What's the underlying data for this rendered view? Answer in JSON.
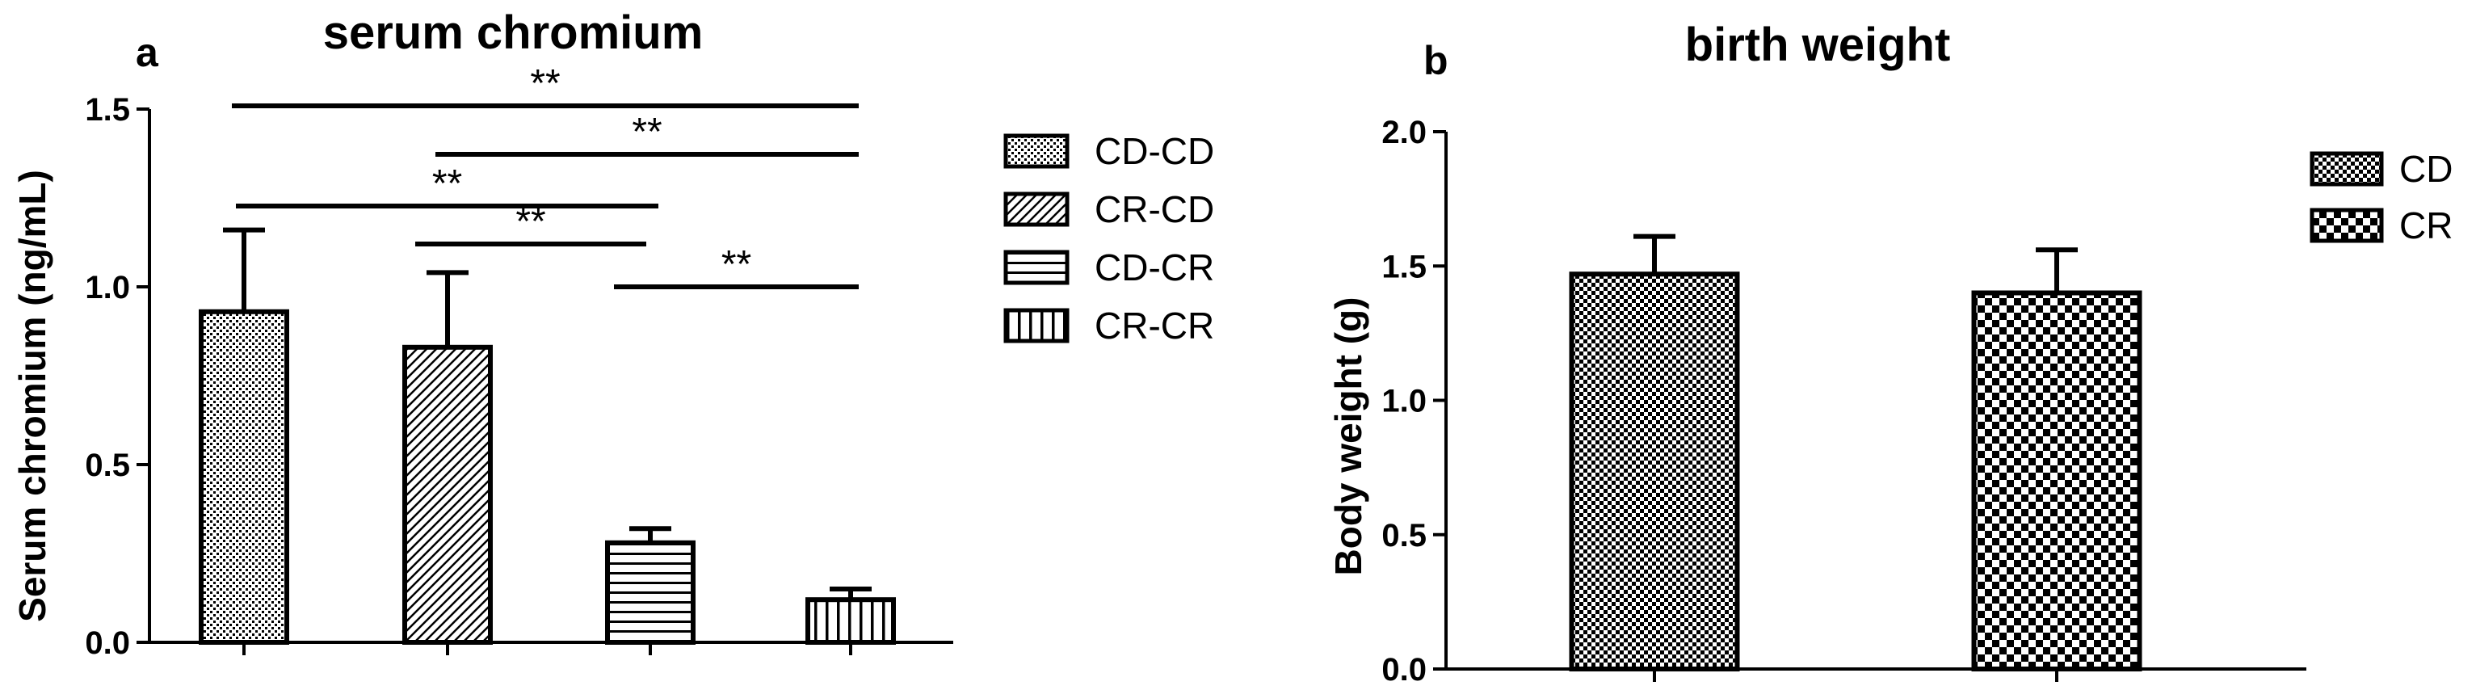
{
  "chart_data": [
    {
      "type": "bar",
      "panel_label": "a",
      "title": "serum chromium",
      "ylabel": "Serum chromium (ng/mL)",
      "xlabel": "",
      "ylim": [
        0,
        1.5
      ],
      "yticks": [
        "0.0",
        "0.5",
        "1.0",
        "1.5"
      ],
      "categories": [
        "CD-CD",
        "CR-CD",
        "CD-CR",
        "CR-CR"
      ],
      "values": [
        0.93,
        0.83,
        0.28,
        0.12
      ],
      "error": [
        0.23,
        0.21,
        0.04,
        0.03
      ],
      "fills": [
        "dots",
        "diagonal",
        "horizontal",
        "vertical"
      ],
      "legend": [
        "CD-CD",
        "CR-CD",
        "CD-CR",
        "CR-CR"
      ],
      "legend_position": "right",
      "grid": false,
      "significance": [
        {
          "from": "CD-CD",
          "to": "CR-CR",
          "label": "**"
        },
        {
          "from": "CR-CD",
          "to": "CR-CR",
          "label": "**"
        },
        {
          "from": "CD-CD",
          "to": "CD-CR",
          "label": "**"
        },
        {
          "from": "CR-CD",
          "to": "CD-CR",
          "label": "**"
        },
        {
          "from": "CD-CR",
          "to": "CR-CR",
          "label": "**"
        }
      ]
    },
    {
      "type": "bar",
      "panel_label": "b",
      "title": "birth weight",
      "ylabel": "Body weight (g)",
      "xlabel": "",
      "ylim": [
        0,
        2.0
      ],
      "yticks": [
        "0.0",
        "0.5",
        "1.0",
        "1.5",
        "2.0"
      ],
      "categories": [
        "CD",
        "CR"
      ],
      "values": [
        1.47,
        1.4
      ],
      "error": [
        0.14,
        0.16
      ],
      "fills": [
        "finecheck",
        "check"
      ],
      "legend": [
        "CD",
        "CR"
      ],
      "legend_position": "right",
      "grid": false
    }
  ]
}
